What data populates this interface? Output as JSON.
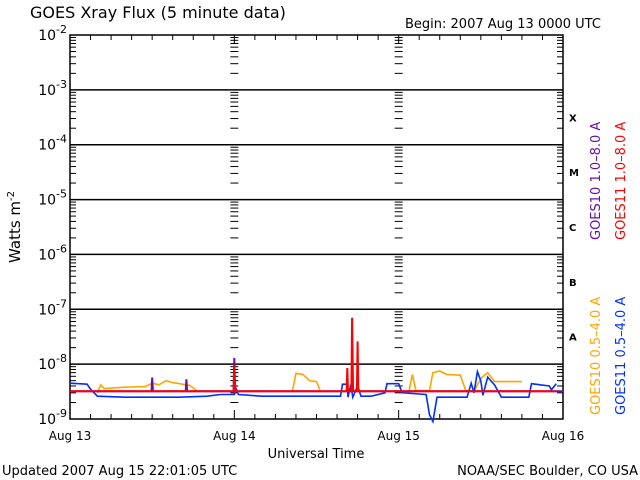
{
  "chart_data": {
    "type": "line",
    "title": "GOES Xray Flux (5 minute data)",
    "begin": "Begin:  2007 Aug 13 0000 UTC",
    "xlabel": "Universal Time",
    "ylabel": "Watts m",
    "ylabel_sup": "-2",
    "yscale": "log",
    "ylim": [
      1e-09,
      0.01
    ],
    "xlim_hours": [
      0,
      72
    ],
    "x_ticks": [
      {
        "h": 0,
        "label": "Aug 13"
      },
      {
        "h": 24,
        "label": "Aug 14"
      },
      {
        "h": 48,
        "label": "Aug 15"
      },
      {
        "h": 72,
        "label": "Aug 16"
      }
    ],
    "y_ticks": [
      {
        "exp": "-2"
      },
      {
        "exp": "-3"
      },
      {
        "exp": "-4"
      },
      {
        "exp": "-5"
      },
      {
        "exp": "-6"
      },
      {
        "exp": "-7"
      },
      {
        "exp": "-8"
      },
      {
        "exp": "-9"
      }
    ],
    "classes": [
      "X",
      "M",
      "C",
      "B",
      "A"
    ],
    "series": [
      {
        "name": "GOES10 0.5-4.0 A",
        "color": "#ffa500",
        "points": [
          [
            4,
            3e-09
          ],
          [
            4.5,
            4.2e-09
          ],
          [
            5,
            3.6e-09
          ],
          [
            8,
            3.8e-09
          ],
          [
            11,
            3.9e-09
          ],
          [
            12,
            4.5e-09
          ],
          [
            13,
            4.2e-09
          ],
          [
            14,
            5e-09
          ],
          [
            15,
            4.6e-09
          ],
          [
            16,
            4.4e-09
          ],
          [
            17.5,
            4.1e-09
          ],
          [
            18.5,
            3.3e-09
          ],
          [
            null,
            null
          ],
          [
            25,
            3.2e-09
          ],
          [
            28,
            3.2e-09
          ],
          [
            null,
            null
          ],
          [
            32.5,
            3.3e-09
          ],
          [
            33,
            6.8e-09
          ],
          [
            34,
            6.5e-09
          ],
          [
            35,
            5e-09
          ],
          [
            36,
            4.8e-09
          ],
          [
            36.5,
            3.4e-09
          ],
          [
            null,
            null
          ],
          [
            49.5,
            3.2e-09
          ],
          [
            50,
            6.5e-09
          ],
          [
            50.5,
            3.3e-09
          ],
          [
            52.5,
            3.3e-09
          ],
          [
            53,
            7e-09
          ],
          [
            54,
            7.5e-09
          ],
          [
            55,
            6.5e-09
          ],
          [
            57,
            6.3e-09
          ],
          [
            57.8,
            3.3e-09
          ],
          [
            59,
            3.2e-09
          ],
          [
            60,
            5.5e-09
          ],
          [
            61,
            7e-09
          ],
          [
            62,
            4.8e-09
          ],
          [
            66,
            4.8e-09
          ]
        ]
      },
      {
        "name": "GOES11 0.5-4.0 A",
        "color": "#0030ff",
        "points": [
          [
            0,
            4.5e-09
          ],
          [
            2.5,
            4.3e-09
          ],
          [
            3,
            3.5e-09
          ],
          [
            4,
            2.6e-09
          ],
          [
            8,
            2.5e-09
          ],
          [
            16,
            2.5e-09
          ],
          [
            20,
            2.6e-09
          ],
          [
            22,
            2.8e-09
          ],
          [
            24,
            2.8e-09
          ],
          [
            24.3,
            3.5e-09
          ],
          [
            24.6,
            2.8e-09
          ],
          [
            28,
            2.6e-09
          ],
          [
            36,
            2.6e-09
          ],
          [
            39.5,
            2.6e-09
          ],
          [
            39.8,
            4.3e-09
          ],
          [
            40.5,
            4.3e-09
          ],
          [
            40.6,
            2.5e-09
          ],
          [
            41,
            4.2e-09
          ],
          [
            41.3,
            2.5e-09
          ],
          [
            42,
            4e-09
          ],
          [
            42.5,
            2.6e-09
          ],
          [
            44,
            2.6e-09
          ],
          [
            46,
            3e-09
          ],
          [
            46.3,
            4.4e-09
          ],
          [
            48,
            4.4e-09
          ],
          [
            48.5,
            3e-09
          ],
          [
            52,
            2.8e-09
          ],
          [
            52.5,
            1.2e-09
          ],
          [
            53,
            9e-10
          ],
          [
            53.3,
            1.5e-09
          ],
          [
            53.6,
            2.5e-09
          ],
          [
            58,
            2.5e-09
          ],
          [
            58.6,
            4.5e-09
          ],
          [
            59,
            3e-09
          ],
          [
            59.5,
            7.3e-09
          ],
          [
            60,
            5e-09
          ],
          [
            60.3,
            2.7e-09
          ],
          [
            61,
            5.8e-09
          ],
          [
            62,
            4.2e-09
          ],
          [
            63,
            2.5e-09
          ],
          [
            67,
            2.5e-09
          ],
          [
            67.4,
            4.4e-09
          ],
          [
            70,
            4e-09
          ],
          [
            70.3,
            3.4e-09
          ],
          [
            71,
            4.4e-09
          ]
        ]
      },
      {
        "name": "GOES10 1.0-8.0 A",
        "color": "#6a0dad",
        "points": [
          [
            0,
            3.2e-09
          ],
          [
            11.9,
            3.2e-09
          ],
          [
            12,
            5.7e-09
          ],
          [
            12.1,
            3.2e-09
          ],
          [
            16.9,
            3.2e-09
          ],
          [
            17,
            5.3e-09
          ],
          [
            17.1,
            3.2e-09
          ],
          [
            23.9,
            3.2e-09
          ],
          [
            24,
            1.3e-08
          ],
          [
            24.1,
            3.2e-09
          ],
          [
            72,
            3.2e-09
          ]
        ]
      },
      {
        "name": "GOES11 1.0-8.0 A",
        "color": "#ff0000",
        "points": [
          [
            0,
            3.2e-09
          ],
          [
            23.9,
            3.2e-09
          ],
          [
            24,
            9.5e-09
          ],
          [
            24.15,
            3.2e-09
          ],
          [
            40.4,
            3.2e-09
          ],
          [
            40.5,
            8.5e-09
          ],
          [
            40.6,
            3.2e-09
          ],
          [
            41.1,
            3.2e-09
          ],
          [
            41.2,
            7e-08
          ],
          [
            41.35,
            3.2e-09
          ],
          [
            41.9,
            3.2e-09
          ],
          [
            42,
            2.6e-08
          ],
          [
            42.1,
            3.2e-09
          ],
          [
            71,
            3.2e-09
          ]
        ]
      }
    ]
  },
  "footer": {
    "updated": "Updated 2007 Aug 15 22:01:05 UTC",
    "credit": "NOAA/SEC Boulder, CO USA"
  }
}
